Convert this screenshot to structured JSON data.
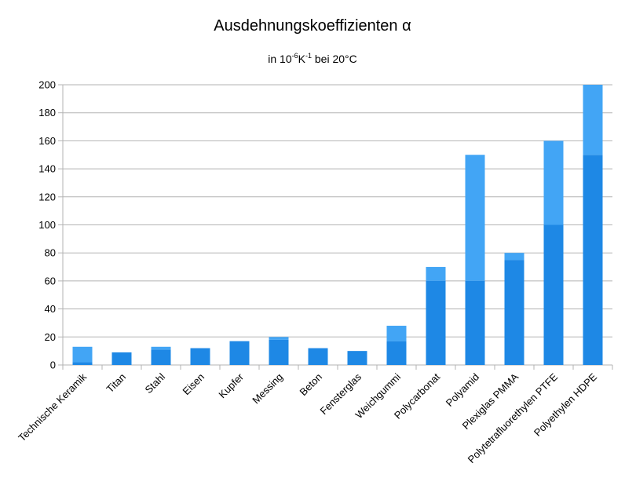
{
  "chart_data": {
    "type": "bar",
    "title": "Ausdehnungskoeffizienten α",
    "subtitle": {
      "prefix": "in 10",
      "exp1": "-6",
      "unit": "K",
      "exp2": "-1",
      "suffix": " bei 20°C"
    },
    "xlabel": "",
    "ylabel": "",
    "ylim": [
      0,
      200
    ],
    "yticks": [
      0,
      20,
      40,
      60,
      80,
      100,
      120,
      140,
      160,
      180,
      200
    ],
    "grid": true,
    "stacked": true,
    "categories": [
      "Technische Keramik",
      "Titan",
      "Stahl",
      "Eisen",
      "Kupfer",
      "Messing",
      "Beton",
      "Fensterglas",
      "Weichgummi",
      "Polycarbonat",
      "Polyamid",
      "Plexiglas PMMA",
      "Polytetrafluorethylen PTFE",
      "Polyethylen HDPE"
    ],
    "series": [
      {
        "values": [
          2,
          9,
          11,
          12,
          17,
          18,
          12,
          10,
          17,
          60,
          60,
          75,
          100,
          150
        ],
        "color": "#1e88e5"
      },
      {
        "values": [
          11,
          0,
          2,
          0,
          0,
          2,
          0,
          0,
          11,
          10,
          90,
          5,
          60,
          50
        ],
        "color": "#42a5f5"
      }
    ]
  }
}
